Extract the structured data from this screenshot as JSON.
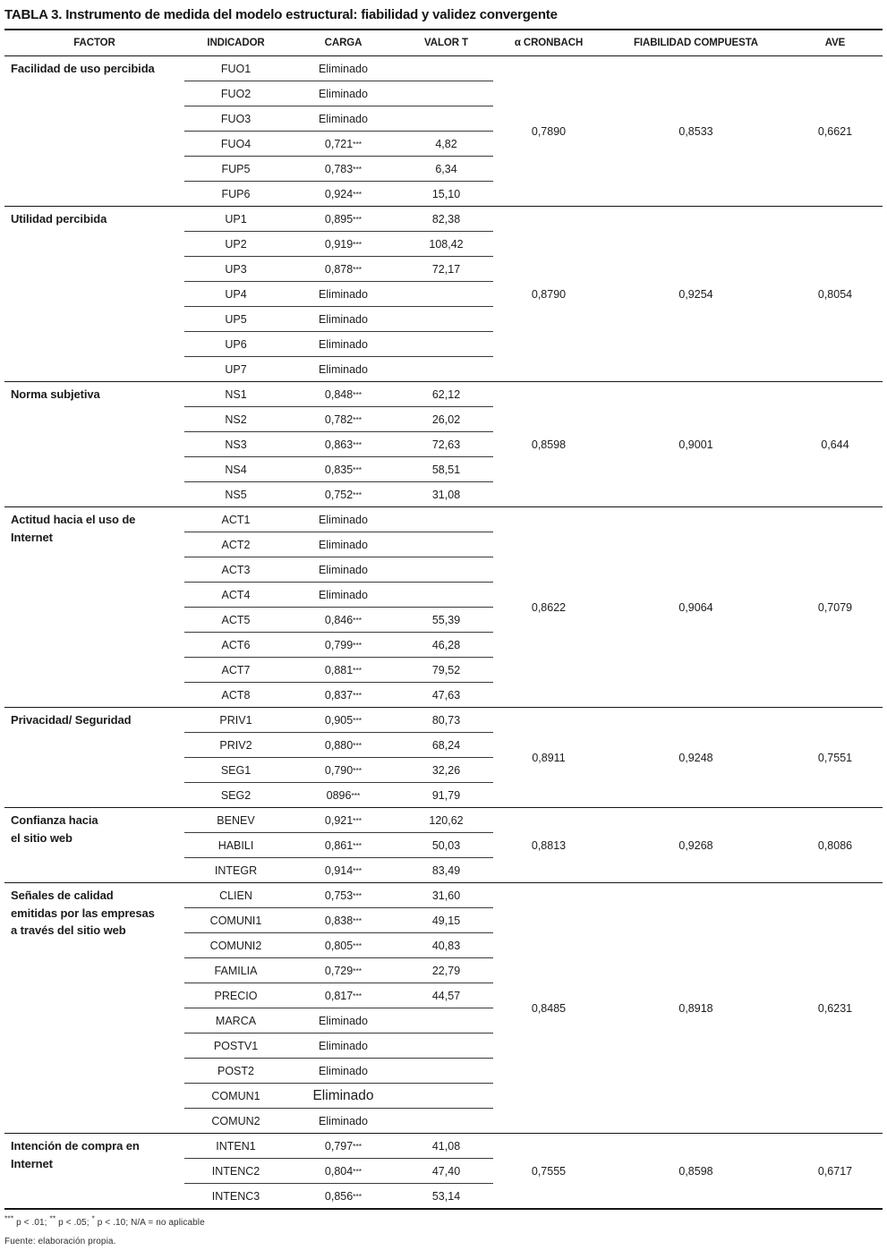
{
  "title": "TABLA 3. Instrumento de medida del modelo estructural: fiabilidad y validez convergente",
  "columns": [
    "FACTOR",
    "INDICADOR",
    "CARGA",
    "VALOR T",
    "α CRONBACH",
    "FIABILIDAD COMPUESTA",
    "AVE"
  ],
  "sections": [
    {
      "factor": "Facilidad de uso percibida",
      "rows": [
        {
          "indicator": "FUO1",
          "carga": "Eliminado",
          "valor_t": ""
        },
        {
          "indicator": "FUO2",
          "carga": "Eliminado",
          "valor_t": ""
        },
        {
          "indicator": "FUO3",
          "carga": "Eliminado",
          "valor_t": ""
        },
        {
          "indicator": "FUO4",
          "carga": "0,721***",
          "valor_t": "4,82"
        },
        {
          "indicator": "FUP5",
          "carga": "0,783***",
          "valor_t": "6,34"
        },
        {
          "indicator": "FUP6",
          "carga": "0,924***",
          "valor_t": "15,10"
        }
      ],
      "cronbach": "0,7890",
      "fiabilidad_compuesta": "0,8533",
      "ave": "0,6621"
    },
    {
      "factor": "Utilidad percibida",
      "rows": [
        {
          "indicator": "UP1",
          "carga": "0,895***",
          "valor_t": "82,38"
        },
        {
          "indicator": "UP2",
          "carga": "0,919***",
          "valor_t": "108,42"
        },
        {
          "indicator": "UP3",
          "carga": "0,878***",
          "valor_t": "72,17"
        },
        {
          "indicator": "UP4",
          "carga": "Eliminado",
          "valor_t": ""
        },
        {
          "indicator": "UP5",
          "carga": "Eliminado",
          "valor_t": ""
        },
        {
          "indicator": "UP6",
          "carga": "Eliminado",
          "valor_t": ""
        },
        {
          "indicator": "UP7",
          "carga": "Eliminado",
          "valor_t": ""
        }
      ],
      "cronbach": "0,8790",
      "fiabilidad_compuesta": "0,9254",
      "ave": "0,8054"
    },
    {
      "factor": "Norma subjetiva",
      "rows": [
        {
          "indicator": "NS1",
          "carga": "0,848***",
          "valor_t": "62,12"
        },
        {
          "indicator": "NS2",
          "carga": "0,782***",
          "valor_t": "26,02"
        },
        {
          "indicator": "NS3",
          "carga": "0,863***",
          "valor_t": "72,63"
        },
        {
          "indicator": "NS4",
          "carga": "0,835***",
          "valor_t": "58,51"
        },
        {
          "indicator": "NS5",
          "carga": "0,752***",
          "valor_t": "31,08"
        }
      ],
      "cronbach": "0,8598",
      "fiabilidad_compuesta": "0,9001",
      "ave": "0,644"
    },
    {
      "factor": "Actitud hacia el uso de\nInternet",
      "rows": [
        {
          "indicator": "ACT1",
          "carga": "Eliminado",
          "valor_t": ""
        },
        {
          "indicator": "ACT2",
          "carga": "Eliminado",
          "valor_t": ""
        },
        {
          "indicator": "ACT3",
          "carga": "Eliminado",
          "valor_t": ""
        },
        {
          "indicator": "ACT4",
          "carga": "Eliminado",
          "valor_t": ""
        },
        {
          "indicator": "ACT5",
          "carga": "0,846***",
          "valor_t": "55,39"
        },
        {
          "indicator": "ACT6",
          "carga": "0,799***",
          "valor_t": "46,28"
        },
        {
          "indicator": "ACT7",
          "carga": "0,881***",
          "valor_t": "79,52"
        },
        {
          "indicator": "ACT8",
          "carga": "0,837***",
          "valor_t": "47,63"
        }
      ],
      "cronbach": "0,8622",
      "fiabilidad_compuesta": "0,9064",
      "ave": "0,7079"
    },
    {
      "factor": "Privacidad/ Seguridad",
      "rows": [
        {
          "indicator": "PRIV1",
          "carga": "0,905***",
          "valor_t": "80,73"
        },
        {
          "indicator": "PRIV2",
          "carga": "0,880***",
          "valor_t": "68,24"
        },
        {
          "indicator": "SEG1",
          "carga": "0,790***",
          "valor_t": "32,26"
        },
        {
          "indicator": "SEG2",
          "carga": "0896***",
          "valor_t": "91,79"
        }
      ],
      "cronbach": "0,8911",
      "fiabilidad_compuesta": "0,9248",
      "ave": "0,7551"
    },
    {
      "factor": "Confianza hacia\nel sitio web",
      "rows": [
        {
          "indicator": "BENEV",
          "carga": "0,921***",
          "valor_t": "120,62"
        },
        {
          "indicator": "HABILI",
          "carga": "0,861***",
          "valor_t": "50,03"
        },
        {
          "indicator": "INTEGR",
          "carga": "0,914***",
          "valor_t": "83,49"
        }
      ],
      "cronbach": "0,8813",
      "fiabilidad_compuesta": "0,9268",
      "ave": "0,8086"
    },
    {
      "factor": "Señales de calidad\nemitidas por las empresas\na través del sitio web",
      "rows": [
        {
          "indicator": "CLIEN",
          "carga": "0,753***",
          "valor_t": "31,60"
        },
        {
          "indicator": "COMUNI1",
          "carga": "0,838***",
          "valor_t": "49,15"
        },
        {
          "indicator": "COMUNI2",
          "carga": "0,805***",
          "valor_t": "40,83"
        },
        {
          "indicator": "FAMILIA",
          "carga": "0,729***",
          "valor_t": "22,79"
        },
        {
          "indicator": "PRECIO",
          "carga": "0,817***",
          "valor_t": "44,57"
        },
        {
          "indicator": "MARCA",
          "carga": "Eliminado",
          "valor_t": ""
        },
        {
          "indicator": "POSTV1",
          "carga": "Eliminado",
          "valor_t": ""
        },
        {
          "indicator": "POST2",
          "carga": "Eliminado",
          "valor_t": ""
        },
        {
          "indicator": "COMUN1",
          "carga": "Eliminado",
          "valor_t": "",
          "large": true
        },
        {
          "indicator": "COMUN2",
          "carga": "Eliminado",
          "valor_t": ""
        }
      ],
      "cronbach": "0,8485",
      "fiabilidad_compuesta": "0,8918",
      "ave": "0,6231"
    },
    {
      "factor": "Intención de compra en\nInternet",
      "rows": [
        {
          "indicator": "INTEN1",
          "carga": "0,797***",
          "valor_t": "41,08"
        },
        {
          "indicator": "INTENC2",
          "carga": "0,804***",
          "valor_t": "47,40"
        },
        {
          "indicator": "INTENC3",
          "carga": "0,856***",
          "valor_t": "53,14"
        }
      ],
      "cronbach": "0,7555",
      "fiabilidad_compuesta": "0,8598",
      "ave": "0,6717"
    }
  ],
  "footnotes": [
    "*** p < .01;  ** p < .05; * p < .10;  N/A = no aplicable",
    "Fuente: elaboración propia."
  ]
}
